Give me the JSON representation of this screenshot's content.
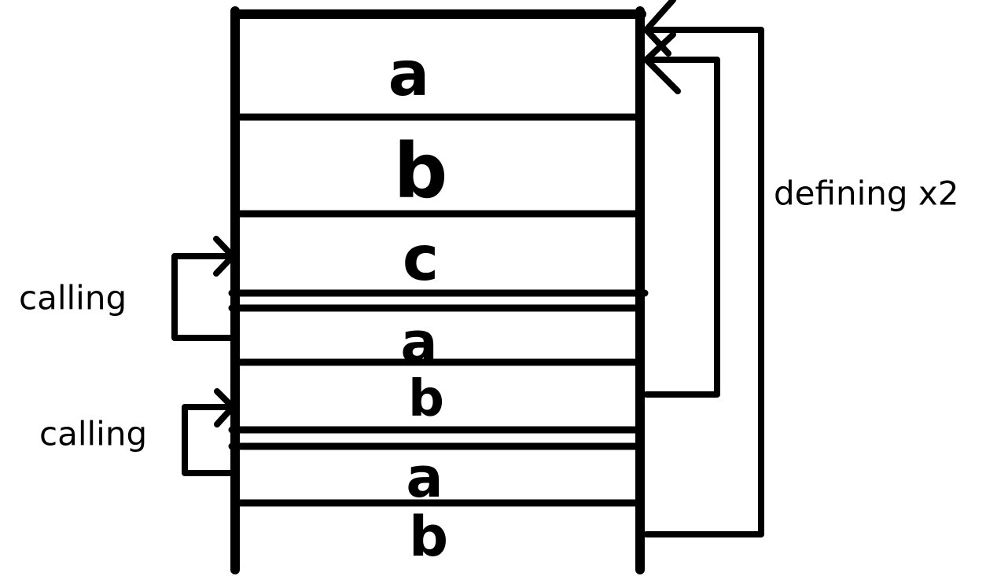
{
  "stack": {
    "cells": [
      "a",
      "b",
      "c",
      "a",
      "b",
      "a",
      "b"
    ]
  },
  "labels": {
    "calling_top": "calling",
    "calling_bottom": "calling",
    "defining": "defining x2"
  }
}
